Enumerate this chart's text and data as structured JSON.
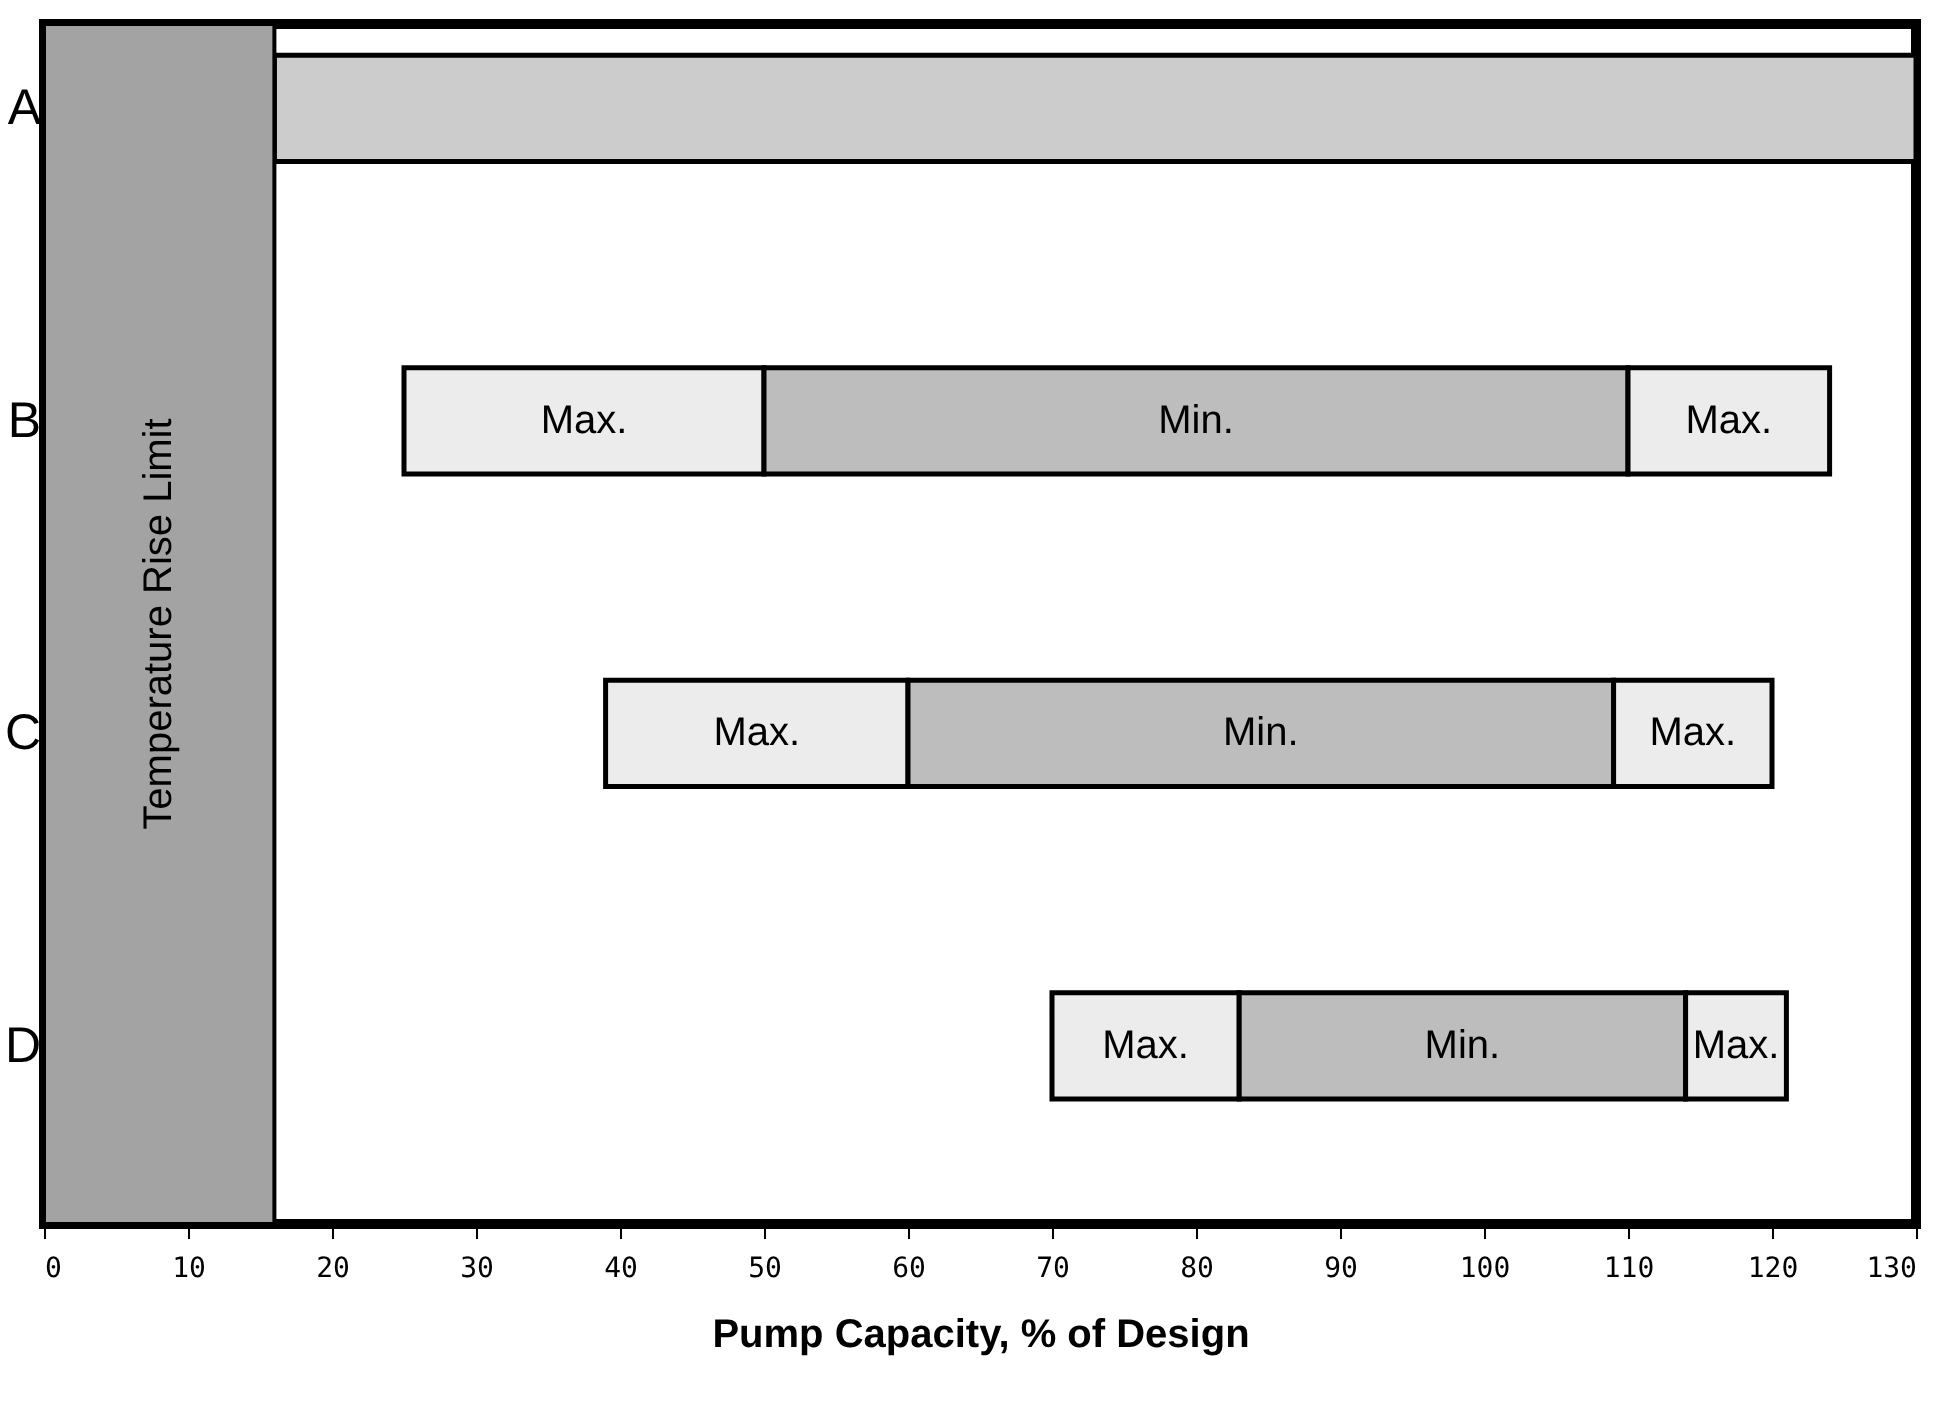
{
  "chart_data": {
    "type": "bar",
    "orientation": "horizontal",
    "xlabel": "Pump Capacity, % of Design",
    "categories": [
      "A",
      "B",
      "C",
      "D"
    ],
    "series": [
      {
        "color": "#cccccc",
        "base": [
          16,
          null,
          null,
          null
        ],
        "values": [
          114,
          null,
          null,
          null
        ]
      },
      {
        "color": "#ececec",
        "base": [
          null,
          25,
          39,
          70
        ],
        "values": [
          null,
          25,
          21,
          13
        ],
        "value_labels": [
          null,
          "Max.",
          "Max.",
          "Max."
        ]
      },
      {
        "color": "#bdbdbd",
        "base": [
          null,
          50,
          60,
          83
        ],
        "values": [
          null,
          60,
          49,
          31
        ],
        "value_labels": [
          null,
          "Min.",
          "Min.",
          "Min."
        ]
      },
      {
        "color": "#ececec",
        "base": [
          null,
          110,
          109,
          114
        ],
        "values": [
          null,
          14,
          11,
          7
        ],
        "value_labels": [
          null,
          "Max.",
          "Max.",
          "Max."
        ]
      }
    ],
    "bands": [
      {
        "axis": "x",
        "from": 0,
        "to": 16,
        "label": "Temperature Rise Limit",
        "color": "#a3a3a3"
      }
    ],
    "xlim": [
      0,
      130
    ],
    "xticks": [
      0,
      10,
      20,
      30,
      40,
      50,
      60,
      70,
      80,
      90,
      100,
      110,
      120,
      130
    ],
    "grid": false
  }
}
